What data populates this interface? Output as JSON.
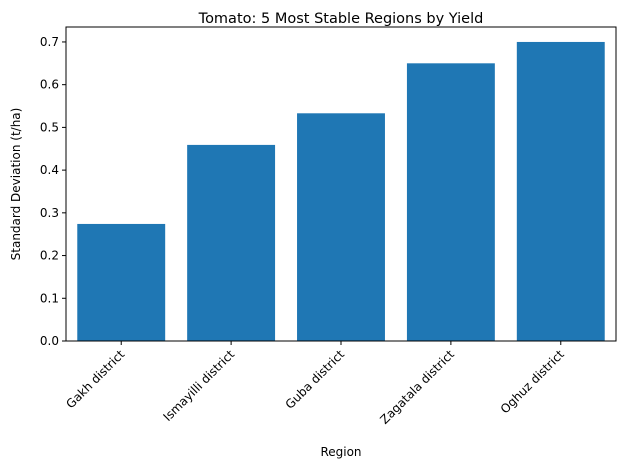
{
  "chart_data": {
    "type": "bar",
    "title": "Tomato: 5 Most Stable Regions by Yield",
    "xlabel": "Region",
    "ylabel": "Standard Deviation (t/ha)",
    "categories": [
      "Gakh district",
      "Ismayilli district",
      "Guba district",
      "Zagatala district",
      "Oghuz district"
    ],
    "values": [
      0.274,
      0.459,
      0.533,
      0.65,
      0.7
    ],
    "ylim": [
      0,
      0.735
    ],
    "yticks": [
      "0.0",
      "0.1",
      "0.2",
      "0.3",
      "0.4",
      "0.5",
      "0.6",
      "0.7"
    ],
    "bar_color": "#1f77b4",
    "grid": false,
    "xtick_rotation": 45
  }
}
